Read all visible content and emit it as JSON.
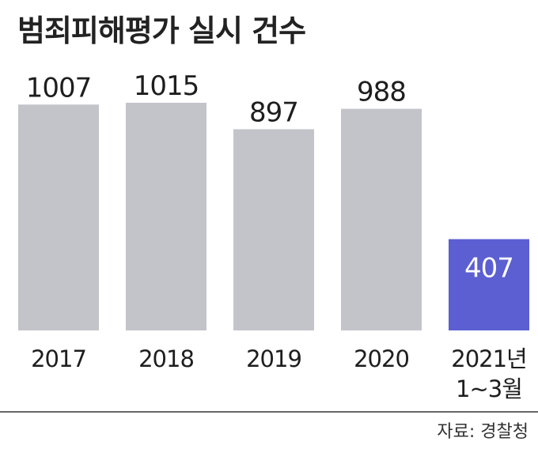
{
  "title": "범죄피해평가 실시 건수",
  "source": "자료: 경찰청",
  "colors": {
    "bar_default": "#c3c4c9",
    "bar_highlight": "#5b5fd1",
    "label_on_highlight": "#ffffff",
    "text": "#1e1e1e",
    "divider": "#333333"
  },
  "chart_data": {
    "type": "bar",
    "categories": [
      "2017",
      "2018",
      "2019",
      "2020",
      "2021년 1~3월"
    ],
    "category_lines": [
      [
        "2017"
      ],
      [
        "2018"
      ],
      [
        "2019"
      ],
      [
        "2020"
      ],
      [
        "2021년",
        "1~3월"
      ]
    ],
    "values": [
      1007,
      1015,
      897,
      988,
      407
    ],
    "data_labels": [
      "1007",
      "1015",
      "897",
      "988",
      "407"
    ],
    "highlight_index": 4,
    "title": "범죄피해평가 실시 건수",
    "xlabel": "",
    "ylabel": "",
    "ylim": [
      0,
      1015
    ],
    "grid": false,
    "legend": "none"
  }
}
